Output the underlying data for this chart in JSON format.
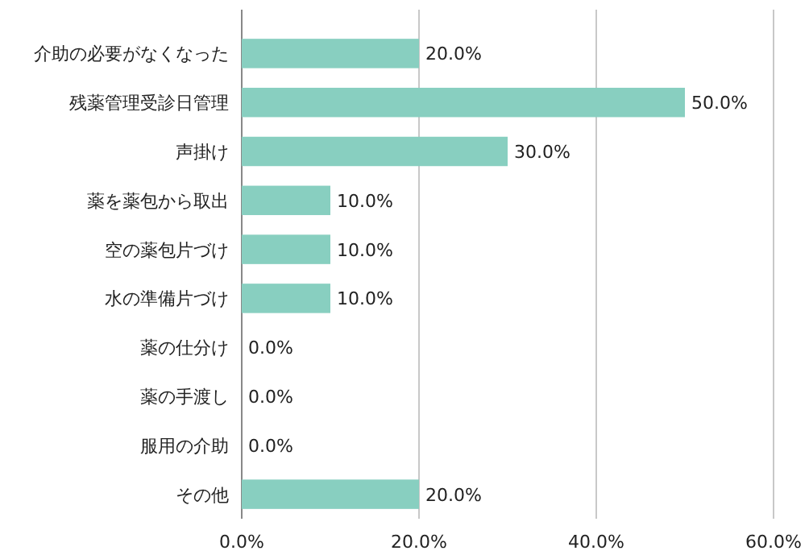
{
  "chart_data": {
    "type": "bar",
    "orientation": "horizontal",
    "categories": [
      "介助の必要がなくなった",
      "残薬管理受診日管理",
      "声掛け",
      "薬を薬包から取出",
      "空の薬包片づけ",
      "水の準備片づけ",
      "薬の仕分け",
      "薬の手渡し",
      "服用の介助",
      "その他"
    ],
    "values": [
      20,
      50,
      30,
      10,
      10,
      10,
      0,
      0,
      0,
      20
    ],
    "value_labels": [
      "20.0%",
      "50.0%",
      "30.0%",
      "10.0%",
      "10.0%",
      "10.0%",
      "0.0%",
      "0.0%",
      "0.0%",
      "20.0%"
    ],
    "color": "#88cfc0",
    "xlim": [
      0,
      60
    ],
    "xticks": [
      {
        "value": 0,
        "label": "0.0%"
      },
      {
        "value": 20,
        "label": "20.0%"
      },
      {
        "value": 40,
        "label": "40.0%"
      },
      {
        "value": 60,
        "label": "60.0%"
      }
    ],
    "grid": "x"
  }
}
